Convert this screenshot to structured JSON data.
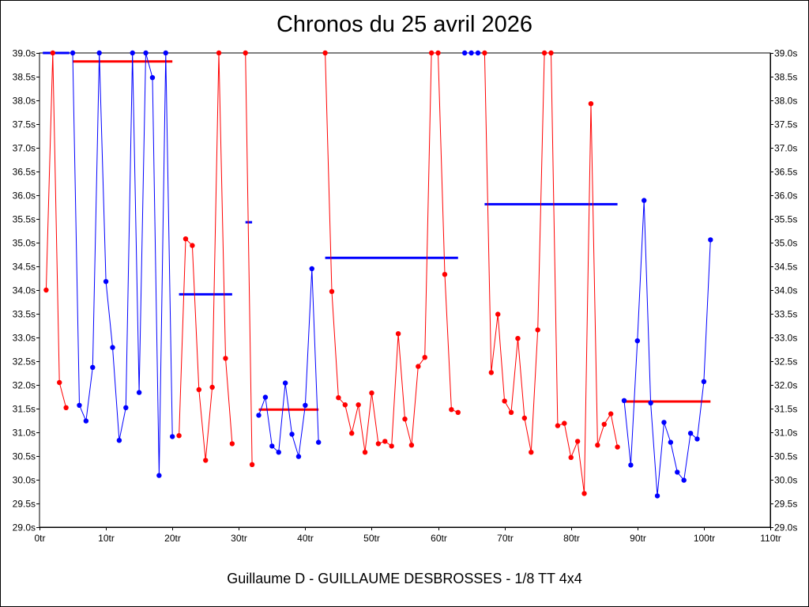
{
  "chart_data": {
    "type": "line",
    "title": "Chronos du 25 avril 2026",
    "subtitle": "Guillaume D - GUILLAUME DESBROSSES - 1/8 TT 4x4",
    "x_ticks": [
      "0tr",
      "10tr",
      "20tr",
      "30tr",
      "40tr",
      "50tr",
      "60tr",
      "70tr",
      "80tr",
      "90tr",
      "100tr",
      "110tr"
    ],
    "y_ticks": [
      "29.0s",
      "29.5s",
      "30.0s",
      "30.5s",
      "31.0s",
      "31.5s",
      "32.0s",
      "32.5s",
      "33.0s",
      "33.5s",
      "34.0s",
      "34.5s",
      "35.0s",
      "35.5s",
      "36.0s",
      "36.5s",
      "37.0s",
      "37.5s",
      "38.0s",
      "38.5s",
      "39.0s"
    ],
    "xlim": [
      0,
      110
    ],
    "ylim": [
      29.0,
      39.0
    ],
    "grid": true,
    "colors": {
      "red": "#ff0000",
      "blue": "#0000ff"
    },
    "series": [
      {
        "color": "red",
        "points": [
          [
            1,
            34.0
          ],
          [
            2,
            39.0
          ],
          [
            3,
            32.05
          ],
          [
            4,
            31.52
          ]
        ]
      },
      {
        "color": "blue",
        "points": [
          [
            5,
            39.0
          ],
          [
            6,
            31.57
          ],
          [
            7,
            31.24
          ],
          [
            8,
            32.37
          ],
          [
            9,
            39.0
          ],
          [
            10,
            34.18
          ],
          [
            11,
            32.79
          ],
          [
            12,
            30.83
          ],
          [
            13,
            31.52
          ],
          [
            14,
            39.0
          ],
          [
            15,
            31.84
          ],
          [
            16,
            39.0
          ],
          [
            17,
            38.48
          ],
          [
            18,
            30.09
          ],
          [
            19,
            39.0
          ],
          [
            20,
            30.91
          ]
        ]
      },
      {
        "color": "red",
        "points": [
          [
            21,
            30.93
          ],
          [
            22,
            35.08
          ],
          [
            23,
            34.94
          ],
          [
            24,
            31.9
          ],
          [
            25,
            30.41
          ],
          [
            26,
            31.95
          ],
          [
            27,
            39.0
          ],
          [
            28,
            32.56
          ],
          [
            29,
            30.76
          ]
        ]
      },
      {
        "color": "red",
        "points": [
          [
            31,
            39.0
          ],
          [
            32,
            30.32
          ]
        ]
      },
      {
        "color": "blue",
        "points": [
          [
            33,
            31.36
          ],
          [
            34,
            31.74
          ],
          [
            35,
            30.71
          ],
          [
            36,
            30.58
          ],
          [
            37,
            32.04
          ],
          [
            38,
            30.96
          ],
          [
            39,
            30.49
          ],
          [
            40,
            31.57
          ],
          [
            41,
            34.45
          ],
          [
            42,
            30.79
          ]
        ]
      },
      {
        "color": "red",
        "points": [
          [
            43,
            39.0
          ],
          [
            44,
            33.97
          ],
          [
            45,
            31.73
          ],
          [
            46,
            31.58
          ],
          [
            47,
            30.98
          ],
          [
            48,
            31.58
          ],
          [
            49,
            30.58
          ],
          [
            50,
            31.83
          ],
          [
            51,
            30.76
          ],
          [
            52,
            30.81
          ],
          [
            53,
            30.71
          ],
          [
            54,
            33.08
          ],
          [
            55,
            31.28
          ],
          [
            56,
            30.73
          ],
          [
            57,
            32.39
          ],
          [
            58,
            32.58
          ],
          [
            59,
            39.0
          ],
          [
            60,
            39.0
          ],
          [
            61,
            34.33
          ],
          [
            62,
            31.48
          ],
          [
            63,
            31.42
          ]
        ]
      },
      {
        "color": "blue",
        "points": [
          [
            64,
            39.0
          ],
          [
            65,
            39.0
          ],
          [
            66,
            39.0
          ]
        ]
      },
      {
        "color": "red",
        "points": [
          [
            67,
            39.0
          ],
          [
            68,
            32.26
          ],
          [
            69,
            33.49
          ],
          [
            70,
            31.66
          ],
          [
            71,
            31.42
          ],
          [
            72,
            32.98
          ],
          [
            73,
            31.3
          ],
          [
            74,
            30.58
          ],
          [
            75,
            33.16
          ],
          [
            76,
            39.0
          ],
          [
            77,
            39.0
          ],
          [
            78,
            31.14
          ],
          [
            79,
            31.19
          ],
          [
            80,
            30.47
          ],
          [
            81,
            30.81
          ],
          [
            82,
            29.71
          ],
          [
            83,
            37.93
          ],
          [
            84,
            30.73
          ],
          [
            85,
            31.17
          ],
          [
            86,
            31.39
          ],
          [
            87,
            30.69
          ]
        ]
      },
      {
        "color": "blue",
        "points": [
          [
            88,
            31.67
          ],
          [
            89,
            30.31
          ],
          [
            90,
            32.93
          ],
          [
            91,
            35.89
          ],
          [
            92,
            31.62
          ],
          [
            93,
            29.66
          ],
          [
            94,
            31.21
          ],
          [
            95,
            30.79
          ],
          [
            96,
            30.16
          ],
          [
            97,
            29.99
          ],
          [
            98,
            30.98
          ],
          [
            99,
            30.86
          ],
          [
            100,
            32.07
          ],
          [
            101,
            35.06
          ]
        ]
      }
    ],
    "averages": [
      {
        "color": "blue",
        "x": [
          0.5,
          4.5
        ],
        "y": 39.0
      },
      {
        "color": "red",
        "x": [
          5,
          20
        ],
        "y": 38.82
      },
      {
        "color": "blue",
        "x": [
          21,
          29
        ],
        "y": 33.91
      },
      {
        "color": "blue",
        "x": [
          31,
          32
        ],
        "y": 35.43
      },
      {
        "color": "red",
        "x": [
          33,
          42
        ],
        "y": 31.48
      },
      {
        "color": "blue",
        "x": [
          43,
          63
        ],
        "y": 34.68
      },
      {
        "color": "blue",
        "x": [
          67,
          87
        ],
        "y": 35.81
      },
      {
        "color": "red",
        "x": [
          88,
          101
        ],
        "y": 31.65
      }
    ]
  }
}
